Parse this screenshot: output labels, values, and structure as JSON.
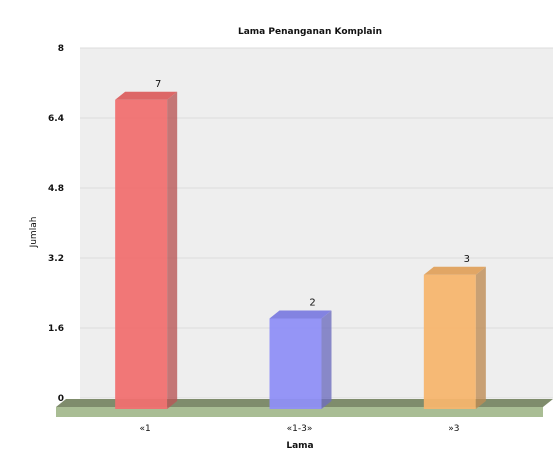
{
  "chart_data": {
    "type": "bar",
    "title": "Lama Penanganan Komplain",
    "xlabel": "Lama",
    "ylabel": "Jumlah",
    "categories": [
      "«1",
      "«1-3»",
      "»3"
    ],
    "values": [
      7,
      2,
      3
    ],
    "value_labels": [
      "7",
      "2",
      "3"
    ],
    "ylim": [
      0,
      8
    ],
    "yticks": [
      "0",
      "1.6",
      "3.2",
      "4.8",
      "6.4",
      "8"
    ],
    "grid": true,
    "legend": "none",
    "colors": [
      "#f07070",
      "#8f8ff5",
      "#f5b56e"
    ],
    "plot_background": "#eeeeee",
    "floor_color": "#a9bd94"
  }
}
